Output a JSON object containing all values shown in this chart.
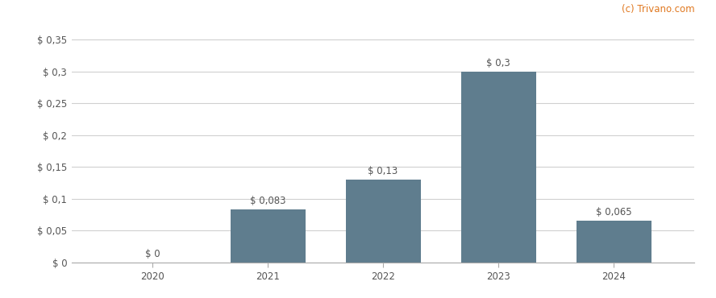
{
  "categories": [
    "2020",
    "2021",
    "2022",
    "2023",
    "2024"
  ],
  "values": [
    0,
    0.083,
    0.13,
    0.3,
    0.065
  ],
  "bar_labels": [
    "$ 0",
    "$ 0,083",
    "$ 0,13",
    "$ 0,3",
    "$ 0,065"
  ],
  "bar_color": "#5f7d8e",
  "background_color": "#ffffff",
  "grid_color": "#d0d0d0",
  "ytick_labels": [
    "$ 0",
    "$ 0,05",
    "$ 0,1",
    "$ 0,15",
    "$ 0,2",
    "$ 0,25",
    "$ 0,3",
    "$ 0,35"
  ],
  "ytick_values": [
    0,
    0.05,
    0.1,
    0.15,
    0.2,
    0.25,
    0.3,
    0.35
  ],
  "ylim": [
    0,
    0.375
  ],
  "watermark": "(c) Trivano.com",
  "watermark_color": "#e07820",
  "axis_color": "#333333",
  "tick_color": "#555555",
  "label_fontsize": 8.5,
  "tick_fontsize": 8.5,
  "watermark_fontsize": 8.5,
  "bar_width": 0.65
}
